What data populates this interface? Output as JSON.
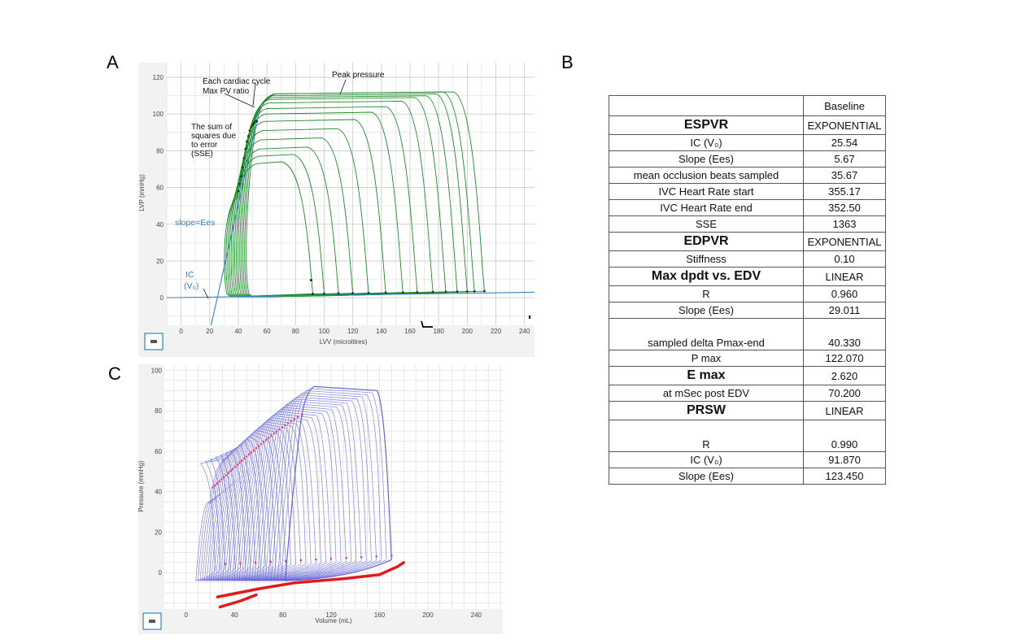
{
  "panel_labels": {
    "a": "A",
    "b": "B",
    "c": "C"
  },
  "chart_data": [
    {
      "type": "line",
      "panel": "A",
      "xlabel": "LVV (microlitres)",
      "ylabel": "LVP (mmHg)",
      "xlim": [
        -10,
        247
      ],
      "ylim": [
        -15,
        128
      ],
      "x_ticks": [
        0,
        20,
        40,
        60,
        80,
        100,
        120,
        140,
        160,
        180,
        200,
        220,
        240
      ],
      "y_ticks": [
        0,
        20,
        40,
        60,
        80,
        100,
        120
      ],
      "grid": true,
      "series_color": "#1f8a2a",
      "loops": [
        {
          "ved": 212,
          "ves": 56,
          "peak": 112
        },
        {
          "ved": 205,
          "ves": 55,
          "peak": 112
        },
        {
          "ved": 200,
          "ves": 54,
          "peak": 111
        },
        {
          "ved": 193,
          "ves": 53,
          "peak": 110
        },
        {
          "ved": 185,
          "ves": 52,
          "peak": 109
        },
        {
          "ved": 176,
          "ves": 51,
          "peak": 107
        },
        {
          "ved": 165,
          "ves": 50,
          "peak": 104
        },
        {
          "ved": 155,
          "ves": 49,
          "peak": 101
        },
        {
          "ved": 143,
          "ves": 48,
          "peak": 97
        },
        {
          "ved": 131,
          "ves": 47,
          "peak": 92
        },
        {
          "ved": 120,
          "ves": 46,
          "peak": 87
        },
        {
          "ved": 110,
          "ves": 45,
          "peak": 82
        },
        {
          "ved": 100,
          "ves": 44,
          "peak": 78
        },
        {
          "ved": 92,
          "ves": 43,
          "peak": 74
        }
      ],
      "espvr_line": {
        "color": "#2f86c6",
        "points": [
          [
            21,
            -15
          ],
          [
            55,
            103
          ]
        ]
      },
      "edpvr_line": {
        "color": "#2f86c6",
        "points": [
          [
            -10,
            0
          ],
          [
            247,
            3
          ]
        ]
      },
      "annotations": {
        "each_cycle": "Each cardiac cycle",
        "max_pv": "Max PV ratio",
        "peak_pressure": "Peak pressure",
        "sse_1": "The sum of",
        "sse_2": "squares due",
        "sse_3": "to error",
        "sse_4": "(SSE)",
        "slope": "slope=Ees",
        "ic_1": "IC",
        "ic_2": "(V₀)"
      }
    },
    {
      "type": "line",
      "panel": "C",
      "xlabel": "Volume (mL)",
      "ylabel": "Pressure (mmHg)",
      "xlim": [
        -18,
        262
      ],
      "ylim": [
        -18,
        103
      ],
      "x_ticks": [
        0,
        40,
        80,
        120,
        160,
        200,
        240
      ],
      "y_ticks": [
        0,
        20,
        40,
        60,
        80,
        100
      ],
      "grid": true,
      "series_color": "#5b5bd6",
      "loops_count": 36,
      "first_loop": {
        "ved": 170,
        "peak": 92
      },
      "last_loop": {
        "ved": 24,
        "peak": 56
      },
      "edpvr_red": {
        "color": "#e01b1b",
        "points": [
          [
            26,
            -12
          ],
          [
            60,
            -8
          ],
          [
            90,
            -5
          ],
          [
            130,
            -3
          ],
          [
            160,
            -1
          ],
          [
            175,
            3
          ],
          [
            180,
            5
          ]
        ]
      },
      "edpvr_red_short": {
        "color": "#e01b1b",
        "points": [
          [
            28,
            -17
          ],
          [
            45,
            -14
          ],
          [
            58,
            -11
          ]
        ]
      }
    }
  ],
  "table": {
    "header": "Baseline",
    "rows": [
      {
        "label": "ESPVR",
        "value": "EXPONENTIAL",
        "style": "head"
      },
      {
        "label": "IC (V₀)",
        "value": "25.54",
        "style": "normal"
      },
      {
        "label": "Slope (Ees)",
        "value": "5.67",
        "style": "normal"
      },
      {
        "label": "mean occlusion beats sampled",
        "value": "35.67",
        "style": "normal"
      },
      {
        "label": "IVC Heart Rate start",
        "value": "355.17",
        "style": "normal"
      },
      {
        "label": "IVC Heart Rate end",
        "value": "352.50",
        "style": "normal"
      },
      {
        "label": "SSE",
        "value": "1363",
        "style": "normal"
      },
      {
        "label": "EDPVR",
        "value": "EXPONENTIAL",
        "style": "head"
      },
      {
        "label": "Stiffness",
        "value": "0.10",
        "style": "normal"
      },
      {
        "label": "Max dpdt vs. EDV",
        "value": "LINEAR",
        "style": "head"
      },
      {
        "label": "R",
        "value": "0.960",
        "style": "normal"
      },
      {
        "label": "Slope (Ees)",
        "value": "29.011",
        "style": "normal"
      },
      {
        "label": "sampled delta Pmax-end",
        "value": "40.330",
        "style": "tall"
      },
      {
        "label": "P max",
        "value": "122.070",
        "style": "normal"
      },
      {
        "label": "E max",
        "value": "2.620",
        "style": "head"
      },
      {
        "label": "at mSec post EDV",
        "value": "70.200",
        "style": "normal"
      },
      {
        "label": "PRSW",
        "value": "LINEAR",
        "style": "head"
      },
      {
        "label": "R",
        "value": "0.990",
        "style": "tall"
      },
      {
        "label": "IC (V₀)",
        "value": "91.870",
        "style": "normal"
      },
      {
        "label": "Slope (Ees)",
        "value": "123.450",
        "style": "normal"
      }
    ]
  },
  "controls": {
    "icon": "chart-control-icon"
  }
}
